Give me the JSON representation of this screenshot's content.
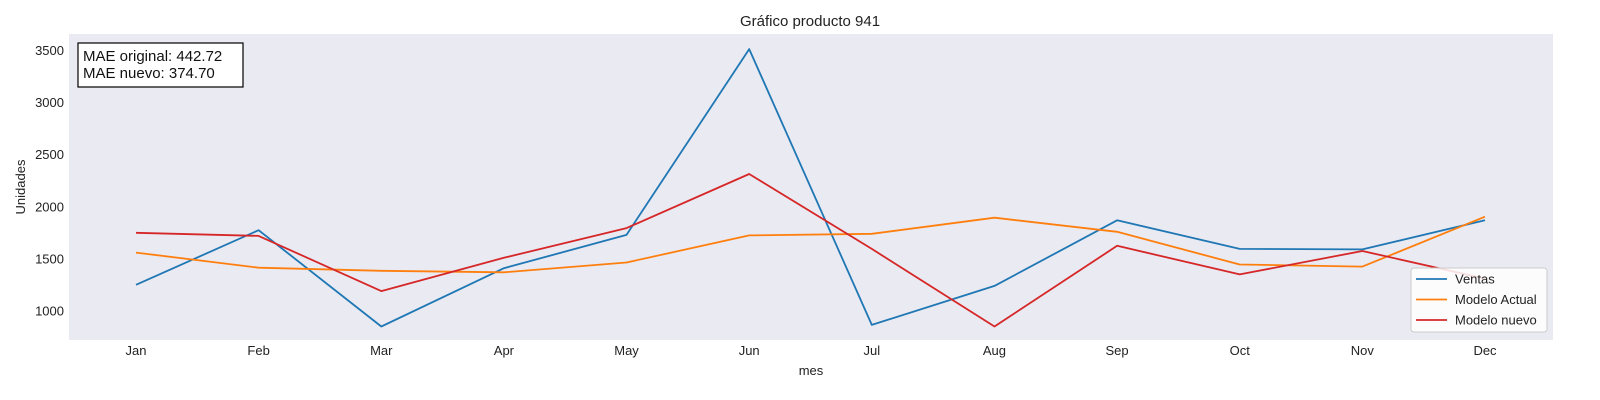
{
  "chart_data": {
    "type": "line",
    "title": "Gráfico producto 941",
    "xlabel": "mes",
    "ylabel": "Unidades",
    "categories": [
      "Jan",
      "Feb",
      "Mar",
      "Apr",
      "May",
      "Jun",
      "Jul",
      "Aug",
      "Sep",
      "Oct",
      "Nov",
      "Dec"
    ],
    "ylim": [
      720,
      3660
    ],
    "yticks": [
      1000,
      1500,
      2000,
      2500,
      3000,
      3500
    ],
    "grid": false,
    "legend_position": "lower-right",
    "series": [
      {
        "name": "Ventas",
        "color": "#1f77b4",
        "values": [
          1250,
          1775,
          850,
          1410,
          1730,
          3515,
          865,
          1240,
          1870,
          1595,
          1590,
          1870
        ]
      },
      {
        "name": "Modelo Actual",
        "color": "#ff7f0e",
        "values": [
          1560,
          1415,
          1385,
          1370,
          1465,
          1725,
          1740,
          1895,
          1760,
          1445,
          1425,
          1905
        ]
      },
      {
        "name": "Modelo nuevo",
        "color": "#d62728",
        "values": [
          1750,
          1720,
          1190,
          1510,
          1795,
          2315,
          1595,
          850,
          1625,
          1350,
          1575,
          1310
        ]
      }
    ],
    "annotation": [
      "MAE original: 442.72",
      "MAE nuevo: 374.70"
    ]
  },
  "colors": {
    "plot_background": "#eaeaf2"
  }
}
